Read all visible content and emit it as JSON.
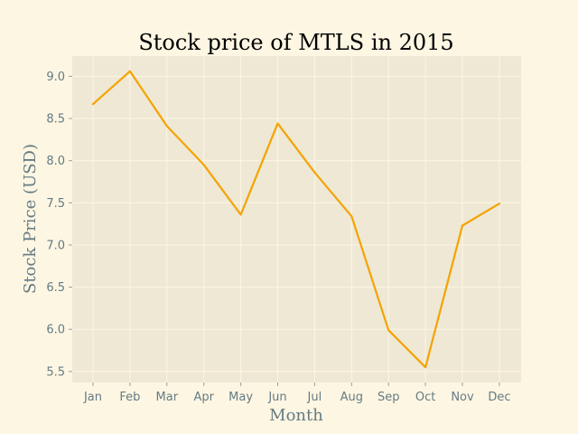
{
  "chart_data": {
    "type": "line",
    "title": "Stock price of MTLS in 2015",
    "xlabel": "Month",
    "ylabel": "Stock Price (USD)",
    "categories": [
      "Jan",
      "Feb",
      "Mar",
      "Apr",
      "May",
      "Jun",
      "Jul",
      "Aug",
      "Sep",
      "Oct",
      "Nov",
      "Dec"
    ],
    "series": [
      {
        "values": [
          8.67,
          9.06,
          8.41,
          7.95,
          7.36,
          8.44,
          7.86,
          7.34,
          5.99,
          5.55,
          7.23,
          7.49
        ],
        "color": "#f5a300"
      }
    ],
    "yticks": [
      "5.5",
      "6.0",
      "6.5",
      "7.0",
      "7.5",
      "8.0",
      "8.5",
      "9.0"
    ],
    "ylim": [
      5.37,
      9.24
    ],
    "grid": true,
    "background_color": "#eee8d5",
    "figure_color": "#fdf6e3"
  }
}
